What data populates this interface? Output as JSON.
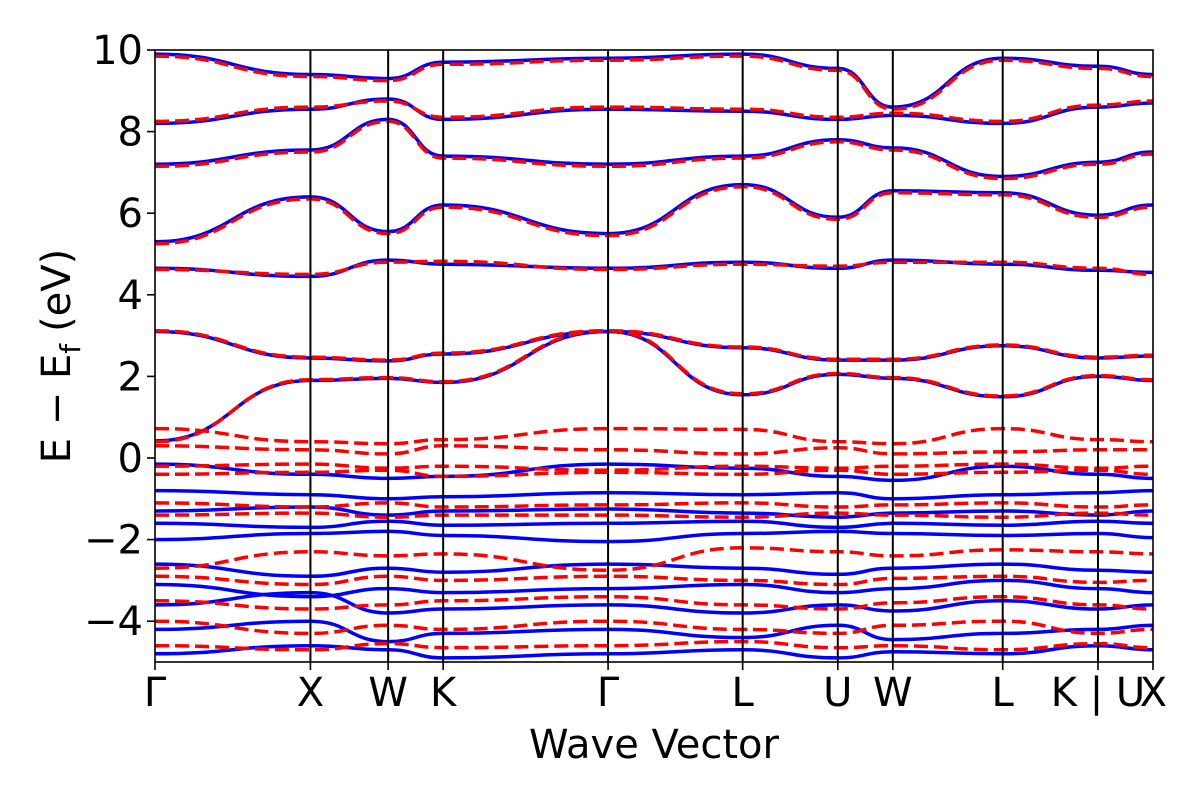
{
  "chart_data": {
    "type": "line",
    "title": "",
    "xlabel": "Wave Vector",
    "ylabel_main": "E − E",
    "ylabel_sub": "f",
    "ylabel_unit": "(eV)",
    "ylim": [
      -5,
      10
    ],
    "y_ticks": [
      10,
      8,
      6,
      4,
      2,
      0,
      -2,
      -4
    ],
    "y_tick_labels": [
      "10",
      "8",
      "6",
      "4",
      "2",
      "0",
      "−2",
      "−4"
    ],
    "high_symmetry_points": [
      {
        "label": "Γ",
        "x": 0.0
      },
      {
        "label": "X",
        "x": 1.0
      },
      {
        "label": "W",
        "x": 1.5
      },
      {
        "label": "K",
        "x": 1.854
      },
      {
        "label": "Γ",
        "x": 2.915
      },
      {
        "label": "L",
        "x": 3.781
      },
      {
        "label": "U",
        "x": 4.393
      },
      {
        "label": "W",
        "x": 4.747
      },
      {
        "label": "L",
        "x": 5.454
      },
      {
        "label": "K | U",
        "x": 6.067
      },
      {
        "label": "X",
        "x": 6.421
      }
    ],
    "grid": false,
    "series": [
      {
        "style": "solid",
        "color": "#0000ff",
        "description_bands": "solid blue bands",
        "bands": [
          [
            0.42,
            1.9,
            1.95,
            1.85,
            3.1,
            1.55,
            2.05,
            1.95,
            1.5,
            2.0,
            1.9
          ],
          [
            3.1,
            2.45,
            2.38,
            2.55,
            3.1,
            2.7,
            2.4,
            2.4,
            2.75,
            2.45,
            2.5
          ],
          [
            4.65,
            4.45,
            4.85,
            4.75,
            4.65,
            4.8,
            4.65,
            4.85,
            4.75,
            4.6,
            4.55
          ],
          [
            5.3,
            6.4,
            5.55,
            6.2,
            5.5,
            6.7,
            5.9,
            6.55,
            6.5,
            5.95,
            6.2
          ],
          [
            7.2,
            7.55,
            8.3,
            7.4,
            7.2,
            7.4,
            7.8,
            7.6,
            6.9,
            7.25,
            7.5
          ],
          [
            8.2,
            8.55,
            8.8,
            8.3,
            8.55,
            8.5,
            8.3,
            8.4,
            8.2,
            8.6,
            8.7
          ],
          [
            9.9,
            9.4,
            9.3,
            9.7,
            9.8,
            9.9,
            9.55,
            8.6,
            9.8,
            9.6,
            9.4
          ],
          [
            -0.15,
            -0.4,
            -0.5,
            -0.45,
            -0.15,
            -0.25,
            -0.45,
            -0.55,
            -0.2,
            -0.4,
            -0.5
          ],
          [
            -0.8,
            -0.9,
            -1.0,
            -0.95,
            -0.85,
            -0.9,
            -0.85,
            -1.0,
            -0.9,
            -0.85,
            -0.8
          ],
          [
            -1.3,
            -1.2,
            -1.4,
            -1.3,
            -1.25,
            -1.35,
            -1.45,
            -1.35,
            -1.3,
            -1.4,
            -1.3
          ],
          [
            -1.6,
            -1.7,
            -1.55,
            -1.65,
            -1.6,
            -1.55,
            -1.7,
            -1.6,
            -1.65,
            -1.55,
            -1.6
          ],
          [
            -2.0,
            -1.85,
            -1.8,
            -1.9,
            -2.05,
            -1.85,
            -1.8,
            -1.85,
            -1.9,
            -1.85,
            -1.95
          ],
          [
            -2.6,
            -2.9,
            -2.7,
            -2.8,
            -2.6,
            -2.7,
            -2.85,
            -2.7,
            -2.6,
            -2.75,
            -2.8
          ],
          [
            -3.1,
            -3.4,
            -3.2,
            -3.3,
            -3.2,
            -3.1,
            -3.3,
            -3.2,
            -3.0,
            -3.2,
            -3.3
          ],
          [
            -3.6,
            -3.3,
            -3.8,
            -3.7,
            -3.6,
            -3.8,
            -3.6,
            -3.75,
            -3.5,
            -3.7,
            -3.6
          ],
          [
            -4.2,
            -4.0,
            -4.5,
            -4.3,
            -4.2,
            -4.4,
            -4.1,
            -4.45,
            -4.3,
            -4.2,
            -4.1
          ],
          [
            -4.8,
            -4.6,
            -4.7,
            -4.9,
            -4.8,
            -4.7,
            -4.9,
            -4.75,
            -4.8,
            -4.6,
            -4.7
          ]
        ]
      },
      {
        "style": "dashed",
        "color": "#ff0000",
        "bands": [
          [
            0.4,
            1.92,
            1.97,
            1.87,
            3.12,
            1.57,
            2.07,
            1.97,
            1.52,
            2.02,
            1.92
          ],
          [
            3.12,
            2.47,
            2.4,
            2.57,
            3.12,
            2.72,
            2.42,
            2.42,
            2.77,
            2.47,
            2.52
          ],
          [
            4.62,
            4.5,
            4.8,
            4.82,
            4.62,
            4.75,
            4.7,
            4.8,
            4.8,
            4.65,
            4.5
          ],
          [
            5.25,
            6.35,
            5.5,
            6.15,
            5.45,
            6.65,
            5.85,
            6.5,
            6.45,
            5.9,
            6.15
          ],
          [
            7.15,
            7.5,
            8.25,
            7.35,
            7.15,
            7.35,
            7.75,
            7.55,
            6.85,
            7.2,
            7.45
          ],
          [
            8.25,
            8.6,
            8.75,
            8.35,
            8.6,
            8.55,
            8.35,
            8.45,
            8.25,
            8.65,
            8.75
          ],
          [
            9.85,
            9.35,
            9.25,
            9.65,
            9.75,
            9.85,
            9.5,
            8.55,
            9.75,
            9.55,
            9.35
          ],
          [
            0.72,
            0.4,
            0.35,
            0.45,
            0.72,
            0.7,
            0.4,
            0.35,
            0.72,
            0.45,
            0.4
          ],
          [
            0.3,
            0.2,
            0.1,
            0.3,
            0.2,
            0.1,
            0.25,
            0.1,
            0.15,
            0.2,
            0.2
          ],
          [
            -0.2,
            -0.15,
            -0.25,
            -0.2,
            -0.3,
            -0.2,
            -0.25,
            -0.2,
            -0.15,
            -0.25,
            -0.2
          ],
          [
            -0.4,
            -0.35,
            -0.3,
            -0.45,
            -0.35,
            -0.4,
            -0.3,
            -0.4,
            -0.35,
            -0.3,
            -0.4
          ],
          [
            -1.1,
            -1.2,
            -1.1,
            -1.2,
            -1.15,
            -1.1,
            -1.2,
            -1.15,
            -1.1,
            -1.2,
            -1.15
          ],
          [
            -1.4,
            -1.35,
            -1.45,
            -1.4,
            -1.4,
            -1.45,
            -1.35,
            -1.4,
            -1.45,
            -1.35,
            -1.4
          ],
          [
            -2.7,
            -2.3,
            -2.4,
            -2.35,
            -2.75,
            -2.2,
            -2.3,
            -2.4,
            -2.25,
            -2.3,
            -2.35
          ],
          [
            -2.9,
            -3.1,
            -2.9,
            -3.0,
            -2.9,
            -3.0,
            -3.1,
            -2.95,
            -2.9,
            -3.05,
            -3.0
          ],
          [
            -3.5,
            -3.7,
            -3.6,
            -3.5,
            -3.4,
            -3.6,
            -3.7,
            -3.55,
            -3.4,
            -3.6,
            -3.7
          ],
          [
            -4.0,
            -4.3,
            -4.1,
            -4.2,
            -4.0,
            -4.2,
            -4.3,
            -4.1,
            -4.0,
            -4.3,
            -4.2
          ],
          [
            -4.6,
            -4.7,
            -4.55,
            -4.65,
            -4.6,
            -4.5,
            -4.65,
            -4.6,
            -4.7,
            -4.55,
            -4.65
          ]
        ]
      }
    ]
  }
}
